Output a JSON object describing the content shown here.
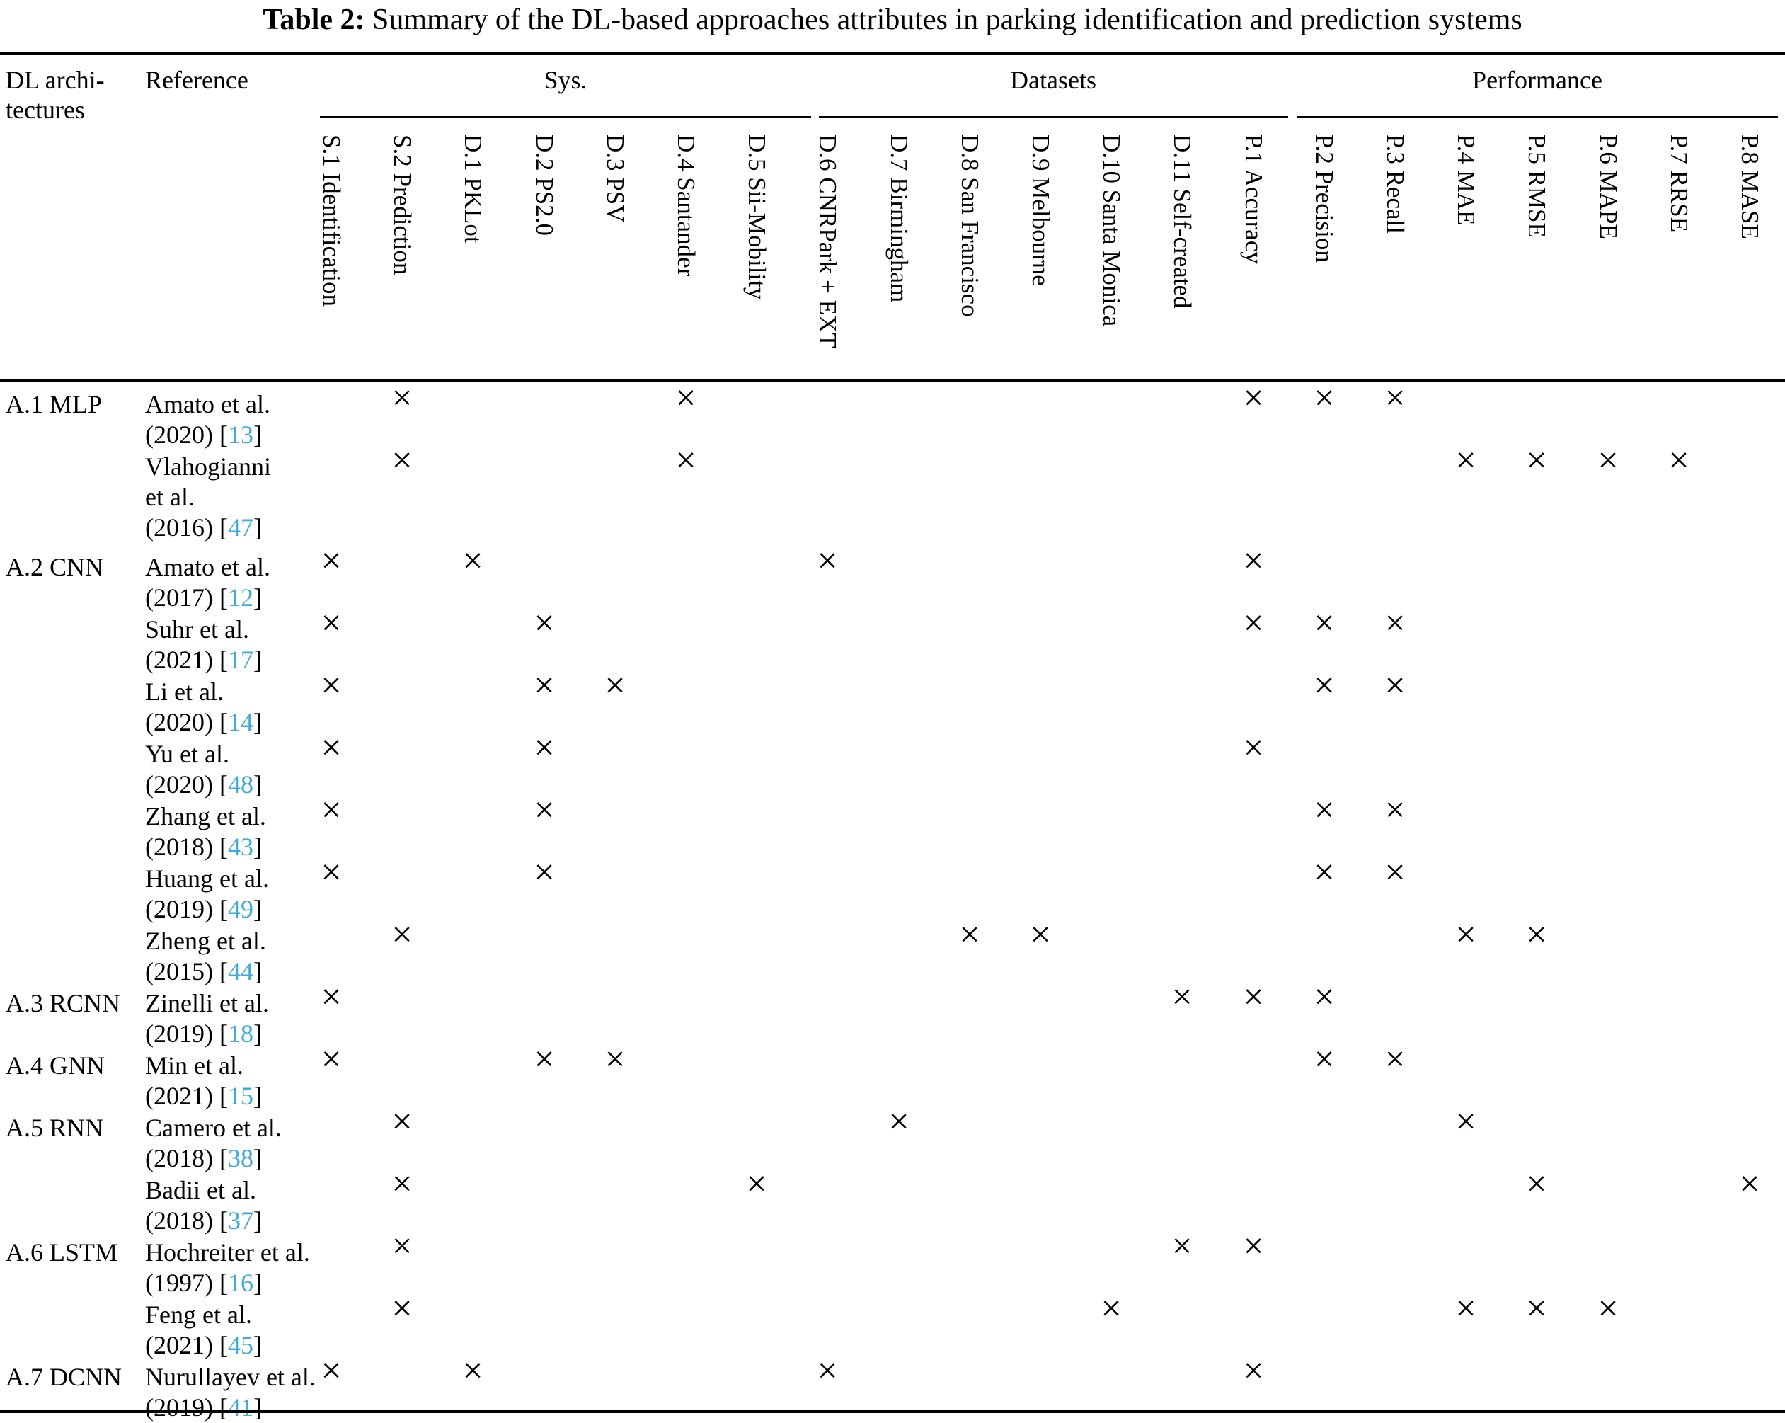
{
  "title": {
    "label": "Table 2:",
    "caption": "Summary of the DL-based approaches attributes in parking identification and prediction systems"
  },
  "header": {
    "arch_lines": [
      "DL archi-",
      "tectures"
    ],
    "reference": "Reference",
    "groups": [
      {
        "id": "sys",
        "label": "Sys."
      },
      {
        "id": "datasets",
        "label": "Datasets"
      },
      {
        "id": "performance",
        "label": "Performance"
      }
    ]
  },
  "mark_symbol": "×",
  "columns": [
    {
      "id": "S.1",
      "label": "S.1 Identification"
    },
    {
      "id": "S.2",
      "label": "S.2 Prediction"
    },
    {
      "id": "D.1",
      "label": "D.1 PKLot"
    },
    {
      "id": "D.2",
      "label": "D.2 PS2.0"
    },
    {
      "id": "D.3",
      "label": "D.3 PSV"
    },
    {
      "id": "D.4",
      "label": "D.4 Santander"
    },
    {
      "id": "D.5",
      "label": "D.5 Sii-Mobility"
    },
    {
      "id": "D.6",
      "label": "D.6 CNRPark + EXT"
    },
    {
      "id": "D.7",
      "label": "D.7 Birmingham"
    },
    {
      "id": "D.8",
      "label": "D.8 San Francisco"
    },
    {
      "id": "D.9",
      "label": "D.9 Melbourne"
    },
    {
      "id": "D.10",
      "label": "D.10 Santa Monica"
    },
    {
      "id": "D.11",
      "label": "D.11 Self-created"
    },
    {
      "id": "P.1",
      "label": "P.1 Accuracy"
    },
    {
      "id": "P.2",
      "label": "P.2 Precision"
    },
    {
      "id": "P.3",
      "label": "P.3 Recall"
    },
    {
      "id": "P.4",
      "label": "P.4 MAE"
    },
    {
      "id": "P.5",
      "label": "P.5 RMSE"
    },
    {
      "id": "P.6",
      "label": "P.6 MAPE"
    },
    {
      "id": "P.7",
      "label": "P.7 RRSE"
    },
    {
      "id": "P.8",
      "label": "P.8 MASE"
    }
  ],
  "rows": [
    {
      "arch": "A.1 MLP",
      "name_lines": [
        "Amato et al."
      ],
      "year": "(2020)",
      "cite": "13",
      "marks": [
        "S.2",
        "D.4",
        "P.1",
        "P.2",
        "P.3"
      ]
    },
    {
      "arch": "",
      "name_lines": [
        "Vlahogianni",
        "et al."
      ],
      "year": "(2016)",
      "cite": "47",
      "marks": [
        "S.2",
        "D.4",
        "P.4",
        "P.5",
        "P.6",
        "P.7"
      ]
    },
    {
      "arch": "A.2 CNN",
      "name_lines": [
        "Amato et al."
      ],
      "year": "(2017)",
      "cite": "12",
      "marks": [
        "S.1",
        "D.1",
        "D.6",
        "P.1"
      ]
    },
    {
      "arch": "",
      "name_lines": [
        "Suhr et al."
      ],
      "year": "(2021)",
      "cite": "17",
      "marks": [
        "S.1",
        "D.2",
        "P.1",
        "P.2",
        "P.3"
      ]
    },
    {
      "arch": "",
      "name_lines": [
        "Li et al."
      ],
      "year": "(2020)",
      "cite": "14",
      "marks": [
        "S.1",
        "D.2",
        "D.3",
        "P.2",
        "P.3"
      ]
    },
    {
      "arch": "",
      "name_lines": [
        "Yu et al."
      ],
      "year": "(2020)",
      "cite": "48",
      "marks": [
        "S.1",
        "D.2",
        "P.1"
      ]
    },
    {
      "arch": "",
      "name_lines": [
        "Zhang et al."
      ],
      "year": "(2018)",
      "cite": "43",
      "marks": [
        "S.1",
        "D.2",
        "P.2",
        "P.3"
      ]
    },
    {
      "arch": "",
      "name_lines": [
        "Huang et al."
      ],
      "year": "(2019)",
      "cite": "49",
      "marks": [
        "S.1",
        "D.2",
        "P.2",
        "P.3"
      ]
    },
    {
      "arch": "",
      "name_lines": [
        "Zheng et al."
      ],
      "year": "(2015)",
      "cite": "44",
      "marks": [
        "S.2",
        "D.8",
        "D.9",
        "P.4",
        "P.5"
      ]
    },
    {
      "arch": "A.3 RCNN",
      "name_lines": [
        "Zinelli et al."
      ],
      "year": "(2019)",
      "cite": "18",
      "marks": [
        "S.1",
        "D.11",
        "P.1",
        "P.2"
      ]
    },
    {
      "arch": "A.4 GNN",
      "name_lines": [
        "Min et al."
      ],
      "year": "(2021)",
      "cite": "15",
      "marks": [
        "S.1",
        "D.2",
        "D.3",
        "P.2",
        "P.3"
      ]
    },
    {
      "arch": "A.5 RNN",
      "name_lines": [
        "Camero et al."
      ],
      "year": "(2018)",
      "cite": "38",
      "marks": [
        "S.2",
        "D.7",
        "P.4"
      ]
    },
    {
      "arch": "",
      "name_lines": [
        "Badii et al."
      ],
      "year": "(2018)",
      "cite": "37",
      "marks": [
        "S.2",
        "D.5",
        "P.5",
        "P.8"
      ]
    },
    {
      "arch": "A.6 LSTM",
      "name_lines": [
        "Hochreiter et al."
      ],
      "year": "(1997)",
      "cite": "16",
      "marks": [
        "S.2",
        "D.11",
        "P.1"
      ]
    },
    {
      "arch": "",
      "name_lines": [
        "Feng et al."
      ],
      "year": "(2021)",
      "cite": "45",
      "marks": [
        "S.2",
        "D.10",
        "P.4",
        "P.5",
        "P.6"
      ]
    },
    {
      "arch": "A.7 DCNN",
      "name_lines": [
        "Nurullayev et al."
      ],
      "year": "(2019)",
      "cite": "41",
      "marks": [
        "S.1",
        "D.1",
        "D.6",
        "P.1"
      ]
    }
  ]
}
